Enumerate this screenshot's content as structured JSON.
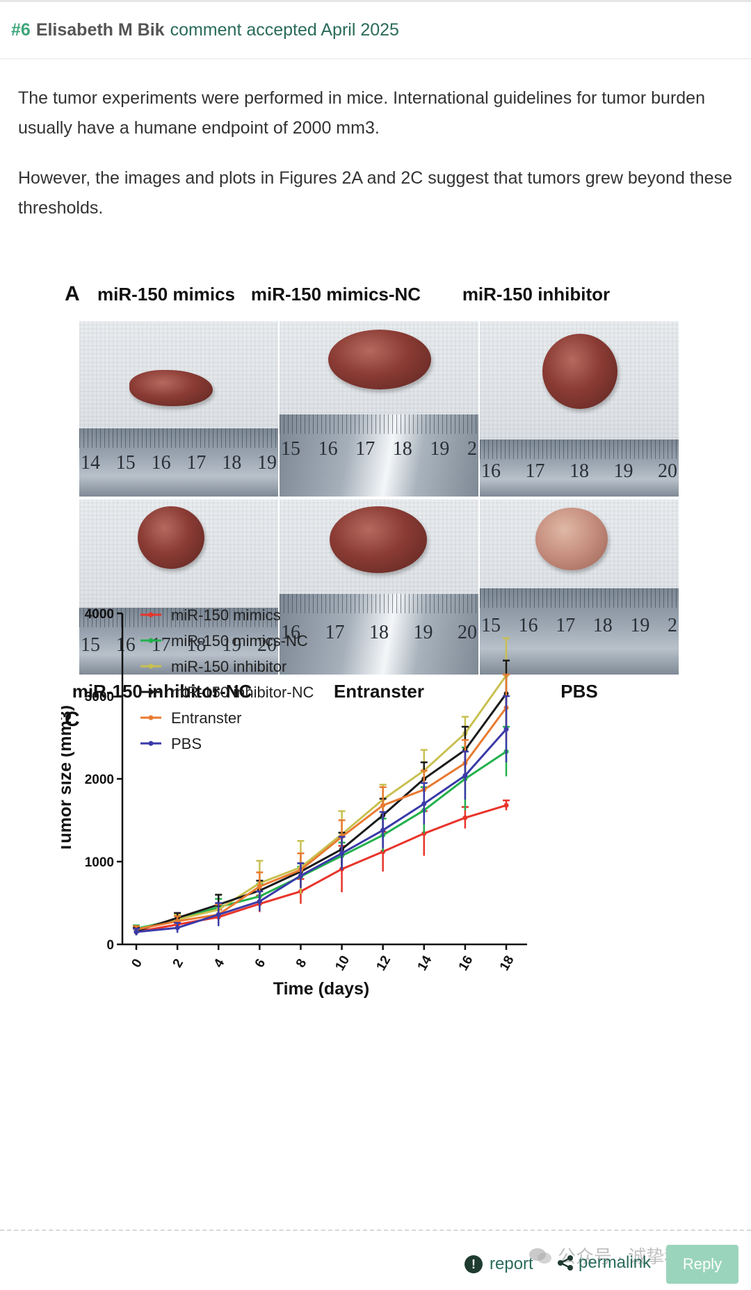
{
  "comment": {
    "number": "#6",
    "author": "Elisabeth M Bik",
    "status": "comment accepted April 2025",
    "paragraphs": [
      "The tumor experiments were performed in mice. International guidelines for tumor burden usually have a humane endpoint of 2000 mm3.",
      "However, the images and plots in Figures 2A and 2C suggest that tumors grew beyond these thresholds."
    ]
  },
  "figure": {
    "panel_a": {
      "letter": "A",
      "top_titles": [
        "miR-150 mimics",
        "miR-150 mimics-NC",
        "miR-150 inhibitor"
      ],
      "bottom_titles": [
        "miR-150 inhibitor-NC",
        "Entranster",
        "PBS"
      ],
      "rulers": [
        [
          "14",
          "15",
          "16",
          "17",
          "18",
          "19"
        ],
        [
          "15",
          "16",
          "17",
          "18",
          "19",
          "2"
        ],
        [
          "16",
          "17",
          "18",
          "19",
          "20"
        ],
        [
          "15",
          "16",
          "17",
          "18",
          "19",
          "20"
        ],
        [
          "16",
          "17",
          "18",
          "19",
          "20"
        ],
        [
          "15",
          "16",
          "17",
          "18",
          "19",
          "2"
        ]
      ]
    },
    "panel_c": {
      "letter": "C"
    }
  },
  "chart_data": {
    "type": "line",
    "title": "",
    "xlabel": "Time (days)",
    "ylabel": "Tumor size (mm3)",
    "x": [
      0,
      2,
      4,
      6,
      8,
      10,
      12,
      14,
      16,
      18
    ],
    "xlim": [
      0,
      18
    ],
    "ylim": [
      0,
      4000
    ],
    "yticks": [
      0,
      1000,
      2000,
      3000,
      4000
    ],
    "legend_position": "top-left",
    "grid": false,
    "series": [
      {
        "name": "miR-150 mimics",
        "color": "#e8342b",
        "values": [
          150,
          240,
          330,
          490,
          640,
          910,
          1120,
          1340,
          1530,
          1680
        ],
        "errors": [
          40,
          60,
          90,
          100,
          150,
          280,
          240,
          270,
          130,
          60
        ]
      },
      {
        "name": "miR-150 mimics-NC",
        "color": "#22b14c",
        "values": [
          190,
          300,
          450,
          580,
          820,
          1070,
          1320,
          1620,
          2000,
          2330
        ],
        "errors": [
          40,
          60,
          100,
          150,
          120,
          160,
          200,
          280,
          380,
          300
        ]
      },
      {
        "name": "miR-150 inhibitor",
        "color": "#c8c050",
        "values": [
          180,
          300,
          420,
          740,
          930,
          1330,
          1750,
          2100,
          2550,
          3250
        ],
        "errors": [
          40,
          60,
          180,
          270,
          320,
          280,
          180,
          250,
          200,
          450
        ]
      },
      {
        "name": "miR-150 inhibitor-NC",
        "color": "#1a1a1a",
        "values": [
          160,
          320,
          480,
          650,
          880,
          1150,
          1560,
          2000,
          2350,
          3030
        ],
        "errors": [
          50,
          60,
          120,
          120,
          100,
          200,
          200,
          200,
          280,
          400
        ]
      },
      {
        "name": "Entranster",
        "color": "#e87a30",
        "values": [
          180,
          280,
          360,
          700,
          900,
          1300,
          1680,
          1870,
          2190,
          2860
        ],
        "errors": [
          40,
          60,
          120,
          170,
          200,
          200,
          220,
          230,
          280,
          400
        ]
      },
      {
        "name": "PBS",
        "color": "#3a3aa8",
        "values": [
          150,
          200,
          360,
          520,
          830,
          1100,
          1380,
          1700,
          2040,
          2600
        ],
        "errors": [
          40,
          60,
          140,
          120,
          150,
          200,
          220,
          250,
          290,
          400
        ]
      }
    ]
  },
  "footer": {
    "report_label": "report",
    "permalink_label": "permalink",
    "reply_label": "Reply",
    "watermark": "公众号 · 诚挚科研"
  },
  "colors": {
    "accent_green": "#3fa67a",
    "link_green": "#2a6b5a",
    "reply_bg": "#9bd4bd"
  },
  "icons": {
    "report": "alert-circle-icon",
    "permalink": "share-icon",
    "watermark": "wechat-icon"
  }
}
